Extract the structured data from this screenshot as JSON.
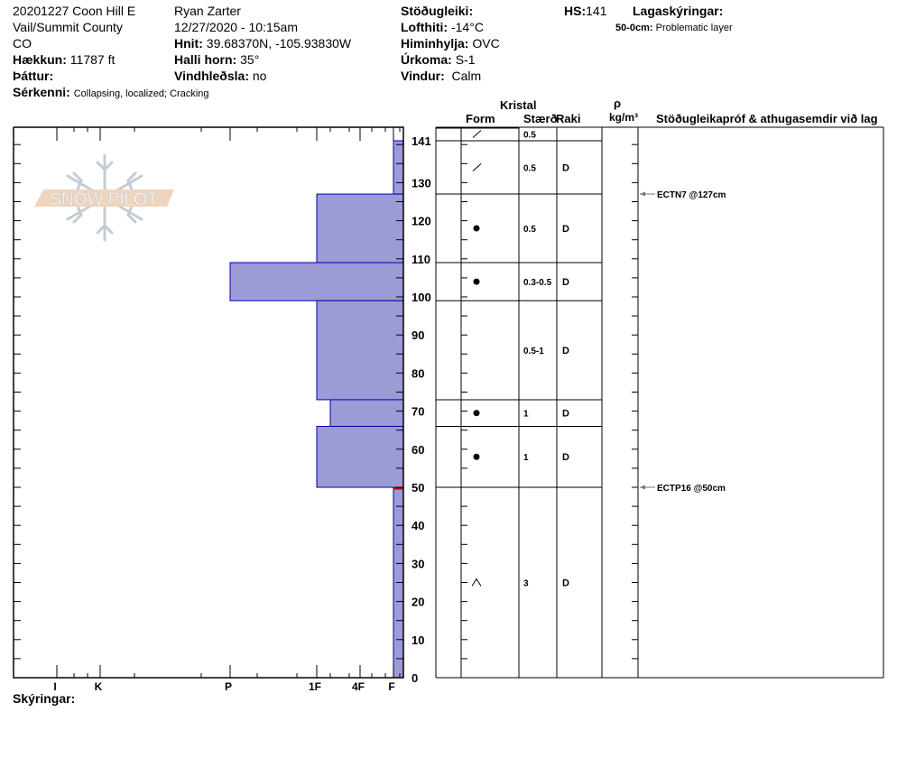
{
  "header": {
    "title": "20201227 Coon Hill E",
    "area": "Vail/Summit County",
    "state": "CO",
    "elevation_label": "Hækkun:",
    "elevation": "11787 ft",
    "aspect_label": "Þáttur:",
    "aspect": "",
    "features_label": "Sérkenni:",
    "features": "Collapsing, localized;  Cracking",
    "observer": "Ryan Zarter",
    "datetime": "12/27/2020 - 10:15am",
    "coords_label": "Hnit:",
    "coords": "39.68370N, -105.93830W",
    "slope_label": "Halli horn:",
    "slope": "35°",
    "wind_loading_label": "Vindhleðsla:",
    "wind_loading": "no",
    "stability_label": "Stöðugleiki:",
    "stability": "",
    "air_temp_label": "Lofthiti:",
    "air_temp": "-14°C",
    "sky_label": "Himinhylja:",
    "sky": "OVC",
    "precip_label": "Úrkoma:",
    "precip": "S-1",
    "wind_label": "Vindur:",
    "wind": "Calm",
    "hs_label": "HS:",
    "hs": "141",
    "legend_label": "Lagaskýringar:",
    "legend_range": "50-0cm:",
    "legend_text": "Problematic layer"
  },
  "logo_text": "SNOW PILOT",
  "footer": {
    "notes_label": "Skýringar:"
  },
  "table_headers": {
    "crystal": "Kristal",
    "form": "Form",
    "size": "Stærð",
    "moisture": "Raki",
    "density_symbol": "ρ",
    "density_unit": "kg/m³",
    "comments": "Stöðugleikapróf & athugasemdir við lag"
  },
  "chart_data": {
    "type": "bar",
    "orientation": "horizontal-step",
    "ylabel": "",
    "ylim": [
      0,
      141
    ],
    "yticks": [
      0,
      10,
      20,
      30,
      40,
      50,
      60,
      70,
      80,
      90,
      100,
      110,
      120,
      130,
      141
    ],
    "x_tick_labels": [
      "I",
      "K",
      "P",
      "1F",
      "4F",
      "F"
    ],
    "bar_color": "#9b9bd6",
    "edge_color": "#0000b0",
    "problem_color": "#c00000",
    "layers": [
      {
        "from": 141,
        "to": 127,
        "hardness": "F"
      },
      {
        "from": 127,
        "to": 109,
        "hardness": "1F"
      },
      {
        "from": 109,
        "to": 99,
        "hardness": "P"
      },
      {
        "from": 99,
        "to": 73,
        "hardness": "1F"
      },
      {
        "from": 73,
        "to": 66,
        "hardness": "1F-"
      },
      {
        "from": 66,
        "to": 50,
        "hardness": "1F"
      },
      {
        "from": 50,
        "to": 0,
        "hardness": "F"
      }
    ],
    "problem_layer_depth": 50
  },
  "crystal_rows": [
    {
      "form": "precip-particle",
      "size": "0.5",
      "moisture": ""
    },
    {
      "form": "precip-particle",
      "size": "0.5",
      "moisture": "D"
    },
    {
      "form": "rounded-grain",
      "size": "0.5",
      "moisture": "D"
    },
    {
      "form": "rounded-grain",
      "size": "0.3-0.5",
      "moisture": "D"
    },
    {
      "form": "",
      "size": "0.5-1",
      "moisture": "D"
    },
    {
      "form": "rounded-grain",
      "size": "1",
      "moisture": "D"
    },
    {
      "form": "rounded-grain",
      "size": "1",
      "moisture": "D"
    },
    {
      "form": "depth-hoar",
      "size": "3",
      "moisture": "D"
    }
  ],
  "tests": [
    {
      "depth": 127,
      "label": "ECTN7 @127cm"
    },
    {
      "depth": 50,
      "label": "ECTP16 @50cm"
    }
  ]
}
